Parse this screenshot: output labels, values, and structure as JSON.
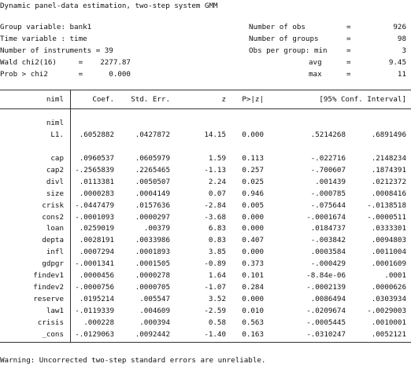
{
  "title": "Dynamic panel-data estimation, two-step system GMM",
  "header_left": [
    "Group variable: bank1",
    "Time variable : time",
    "Number of instruments = 39",
    "Wald chi2(16)     =    2277.87",
    "Prob > chi2       =      0.000"
  ],
  "header_right": [
    {
      "label": "Number of obs",
      "eq": "=",
      "value": "926"
    },
    {
      "label": "Number of groups",
      "eq": "=",
      "value": "98"
    },
    {
      "label": "Obs per group: min",
      "eq": "=",
      "value": "3"
    },
    {
      "label": "avg",
      "eq": "=",
      "value": "9.45"
    },
    {
      "label": "max",
      "eq": "=",
      "value": "11"
    }
  ],
  "columns": {
    "depvar": "niml",
    "coef": "Coef.",
    "se": "Std. Err.",
    "z": "z",
    "p": "P>|z|",
    "ci": "[95% Conf. Interval]"
  },
  "lag_group": "niml",
  "rows": [
    {
      "name": "L1.",
      "coef": ".6052882",
      "se": ".0427872",
      "z": "14.15",
      "p": "0.000",
      "lo": ".5214268",
      "hi": ".6891496"
    },
    {
      "name": "cap",
      "coef": ".0960537",
      "se": ".0605979",
      "z": "1.59",
      "p": "0.113",
      "lo": "-.022716",
      "hi": ".2148234"
    },
    {
      "name": "cap2",
      "coef": "-.2565839",
      "se": ".2265465",
      "z": "-1.13",
      "p": "0.257",
      "lo": "-.700607",
      "hi": ".1874391"
    },
    {
      "name": "divl",
      "coef": ".0113381",
      "se": ".0050507",
      "z": "2.24",
      "p": "0.025",
      "lo": ".001439",
      "hi": ".0212372"
    },
    {
      "name": "size",
      "coef": ".0000283",
      "se": ".0004149",
      "z": "0.07",
      "p": "0.946",
      "lo": "-.000785",
      "hi": ".0008416"
    },
    {
      "name": "crisk",
      "coef": "-.0447479",
      "se": ".0157636",
      "z": "-2.84",
      "p": "0.005",
      "lo": "-.075644",
      "hi": "-.0138518"
    },
    {
      "name": "cons2",
      "coef": "-.0001093",
      "se": ".0000297",
      "z": "-3.68",
      "p": "0.000",
      "lo": "-.0001674",
      "hi": "-.0000511"
    },
    {
      "name": "loan",
      "coef": ".0259019",
      "se": ".00379",
      "z": "6.83",
      "p": "0.000",
      "lo": ".0184737",
      "hi": ".0333301"
    },
    {
      "name": "depta",
      "coef": ".0028191",
      "se": ".0033986",
      "z": "0.83",
      "p": "0.407",
      "lo": "-.003842",
      "hi": ".0094803"
    },
    {
      "name": "infl",
      "coef": ".0007294",
      "se": ".0001893",
      "z": "3.85",
      "p": "0.000",
      "lo": ".0003584",
      "hi": ".0011004"
    },
    {
      "name": "gdpgr",
      "coef": "-.0001341",
      "se": ".0001505",
      "z": "-0.89",
      "p": "0.373",
      "lo": "-.000429",
      "hi": ".0001609"
    },
    {
      "name": "findev1",
      "coef": ".0000456",
      "se": ".0000278",
      "z": "1.64",
      "p": "0.101",
      "lo": "-8.84e-06",
      "hi": ".0001"
    },
    {
      "name": "findev2",
      "coef": "-.0000756",
      "se": ".0000705",
      "z": "-1.07",
      "p": "0.284",
      "lo": "-.0002139",
      "hi": ".0000626"
    },
    {
      "name": "reserve",
      "coef": ".0195214",
      "se": ".005547",
      "z": "3.52",
      "p": "0.000",
      "lo": ".0086494",
      "hi": ".0303934"
    },
    {
      "name": "law1",
      "coef": "-.0119339",
      "se": ".004609",
      "z": "-2.59",
      "p": "0.010",
      "lo": "-.0209674",
      "hi": "-.0029003"
    },
    {
      "name": "crisis",
      "coef": ".000228",
      "se": ".000394",
      "z": "0.58",
      "p": "0.563",
      "lo": "-.0005445",
      "hi": ".0010001"
    },
    {
      "name": "_cons",
      "coef": "-.0129063",
      "se": ".0092442",
      "z": "-1.40",
      "p": "0.163",
      "lo": "-.0310247",
      "hi": ".0052121"
    }
  ],
  "warning": "Warning: Uncorrected two-step standard errors are unreliable."
}
